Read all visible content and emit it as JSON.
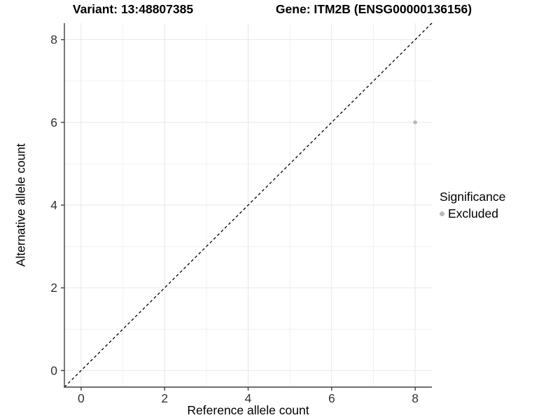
{
  "chart_data": {
    "type": "scatter",
    "title_left": "Variant: 13:48807385",
    "title_right": "Gene: ITM2B (ENSG00000136156)",
    "xlabel": "Reference allele count",
    "ylabel": "Alternative allele count",
    "xlim": [
      -0.4,
      8.4
    ],
    "ylim": [
      -0.4,
      8.4
    ],
    "x_major_ticks": [
      0,
      2,
      4,
      6,
      8
    ],
    "y_major_ticks": [
      0,
      2,
      4,
      6,
      8
    ],
    "x_minor_ticks": [
      1,
      3,
      5,
      7
    ],
    "y_minor_ticks": [
      1,
      3,
      5,
      7
    ],
    "grid": true,
    "points": [
      {
        "x": 8,
        "y": 6,
        "significance": "Excluded"
      }
    ],
    "identity_line": {
      "style": "dashed",
      "from": -0.4,
      "to": 8.4,
      "color": "#000000"
    },
    "legend": {
      "title": "Significance",
      "position": "right",
      "items": [
        {
          "label": "Excluded",
          "color": "#b8b8b8"
        }
      ]
    },
    "colors": {
      "point": "#b8b8b8",
      "grid_major": "#e7e7e7",
      "grid_minor": "#f1f1f1",
      "axis": "#404040",
      "tick_label": "#333333",
      "text": "#000000"
    }
  }
}
